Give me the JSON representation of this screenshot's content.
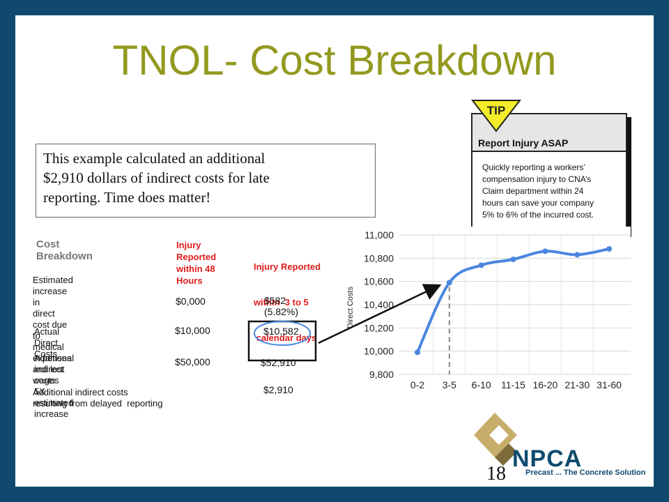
{
  "slide": {
    "title": "TNOL- Cost Breakdown",
    "callout_lines": [
      "This example calculated an additional",
      "$2,910 dollars of indirect costs for late",
      "reporting. Time does matter!"
    ],
    "page_number": "18"
  },
  "tip": {
    "badge": "TIP",
    "heading": "Report Injury ASAP",
    "body_lines": [
      "Quickly reporting a workers’",
      "compensation injury to CNA’s",
      "Claim department within 24",
      "hours can save your company",
      "5% to 6% of the incurred cost."
    ]
  },
  "breakdown": {
    "heading": "Cost Breakdown",
    "col1_header_lines": [
      "Injury",
      "Reported",
      "within 48",
      "Hours"
    ],
    "col2_header_lines": [
      "Injury Reported",
      "within  3 to 5",
      " calendar days"
    ],
    "rows": [
      {
        "label_lines": [
          "Estimated increase in",
          "direct cost due to medical",
          "expenses and lost wages"
        ],
        "col1": "$0,000",
        "col2": "$582 (5.82%)"
      },
      {
        "label_lines": [
          "Actual Direct Costs"
        ],
        "col1": "$10,000",
        "col2": "$10,582"
      },
      {
        "label_lines": [
          "Additional indirect costs",
          "5X estimated increase"
        ],
        "col1": "$50,000",
        "col2": "$52,910"
      },
      {
        "label_lines": [
          "Additional indirect costs",
          "resulting from delayed  reporting"
        ],
        "col1": "",
        "col2": "$2,910"
      }
    ]
  },
  "chart_data": {
    "type": "line",
    "title": "",
    "xlabel": "",
    "ylabel": "Direct Costs",
    "categories": [
      "0-2",
      "3-5",
      "6-10",
      "11-15",
      "16-20",
      "21-30",
      "31-60"
    ],
    "series": [
      {
        "values": [
          9990,
          10590,
          10740,
          10790,
          10860,
          10830,
          10880
        ],
        "color": "#4a86e0"
      }
    ],
    "ylim": [
      9800,
      11000
    ],
    "yticks": [
      9800,
      10000,
      10200,
      10400,
      10600,
      10800,
      11000
    ],
    "ytick_labels": [
      "9,800",
      "10,000",
      "10,200",
      "10,400",
      "10,600",
      "10,800",
      "11,000"
    ],
    "marker_category": "3-5",
    "grid": true
  },
  "logo": {
    "text": "NPCA",
    "tagline": "Precast ... The Concrete Solution"
  },
  "colors": {
    "background": "#0f4a6e",
    "title": "#93991f",
    "accent_red": "#e01b1b",
    "line": "#4a86e0"
  }
}
